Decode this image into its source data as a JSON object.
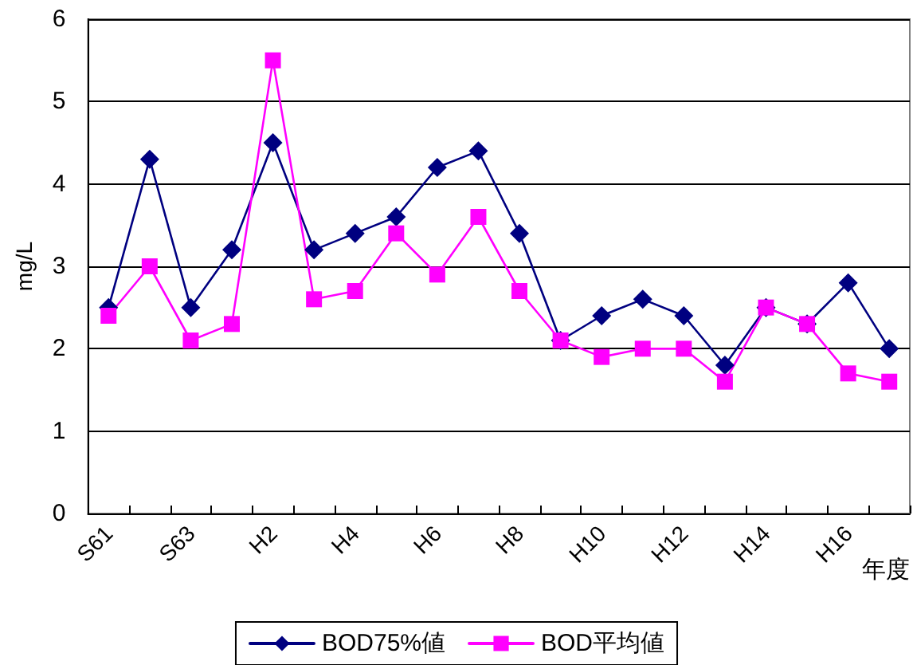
{
  "chart_data": {
    "type": "line",
    "xlabel": "年度",
    "ylabel": "mg/L",
    "categories": [
      "S61",
      null,
      "S63",
      null,
      "H2",
      null,
      "H4",
      null,
      "H6",
      null,
      "H8",
      null,
      "H10",
      null,
      "H12",
      null,
      "H14",
      null,
      "H16",
      null
    ],
    "series": [
      {
        "name": "BOD75%値",
        "color": "#000080",
        "marker": "diamond",
        "values": [
          2.5,
          4.3,
          2.5,
          3.2,
          4.5,
          3.2,
          3.4,
          3.6,
          4.2,
          4.4,
          3.4,
          2.1,
          2.4,
          2.6,
          2.4,
          1.8,
          2.5,
          2.3,
          2.8,
          2.0
        ]
      },
      {
        "name": "BOD平均値",
        "color": "#ff00ff",
        "marker": "square",
        "values": [
          2.4,
          3.0,
          2.1,
          2.3,
          5.5,
          2.6,
          2.7,
          3.4,
          2.9,
          3.6,
          2.7,
          2.1,
          1.9,
          2.0,
          2.0,
          1.6,
          2.5,
          2.3,
          1.7,
          1.6
        ]
      }
    ],
    "ylim": [
      0,
      6
    ],
    "yticks": [
      0,
      1,
      2,
      3,
      4,
      5,
      6
    ],
    "grid": "y",
    "legend": "bottom"
  }
}
